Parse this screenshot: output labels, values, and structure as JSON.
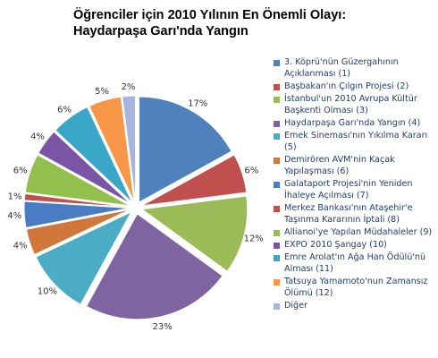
{
  "chart_data": {
    "type": "pie",
    "title_lines": [
      "Öğrenciler için 2010 Yılının En Önemli Olayı:",
      "Haydarpaşa Garı'nda Yangın"
    ],
    "slices": [
      {
        "label": "3. Köprü'nün Güzergahının Açıklanması (1)",
        "value": 17,
        "data_label": "17%",
        "color": "#4f81bd"
      },
      {
        "label": "Başbakan'ın Çılgın Projesi (2)",
        "value": 6,
        "data_label": "6%",
        "color": "#c0504d"
      },
      {
        "label": "İstanbul'un 2010 Avrupa Kültür Başkenti Olması (3)",
        "value": 12,
        "data_label": "12%",
        "color": "#9bbb59"
      },
      {
        "label": "Haydarpaşa Garı'nda Yangın (4)",
        "value": 23,
        "data_label": "23%",
        "color": "#8064a2"
      },
      {
        "label": "Emek Sineması'nın Yıkılma Kararı (5)",
        "value": 10,
        "data_label": "10%",
        "color": "#4bacc6"
      },
      {
        "label": "Demirören AVM'nin Kaçak Yapılaşması (6)",
        "value": 4,
        "data_label": "4%",
        "color": "#d2773b"
      },
      {
        "label": "Galataport Projesi'nin Yeniden İhaleye Açılması (7)",
        "value": 4,
        "data_label": "4%",
        "color": "#4a7cc4"
      },
      {
        "label": "Merkez Bankası'nın Ataşehir'e Taşınma Kararının İptali (8)",
        "value": 1,
        "data_label": "1%",
        "color": "#c0504d"
      },
      {
        "label": "Allianoi'ye Yapılan Müdahaleler (9)",
        "value": 6,
        "data_label": "6%",
        "color": "#92c04c"
      },
      {
        "label": "EXPO 2010 Şangay (10)",
        "value": 4,
        "data_label": "4%",
        "color": "#7a55a6"
      },
      {
        "label": "Emre Arolat'ın Ağa Han Ödülü'nü Alması (11)",
        "value": 6,
        "data_label": "6%",
        "color": "#3aa7c9"
      },
      {
        "label": "Tatsuya Yamamoto'nun Zamansız Ölümü (12)",
        "value": 5,
        "data_label": "5%",
        "color": "#f79646"
      },
      {
        "label": "Diğer",
        "value": 2,
        "data_label": "2%",
        "color": "#a8b4de"
      }
    ]
  }
}
